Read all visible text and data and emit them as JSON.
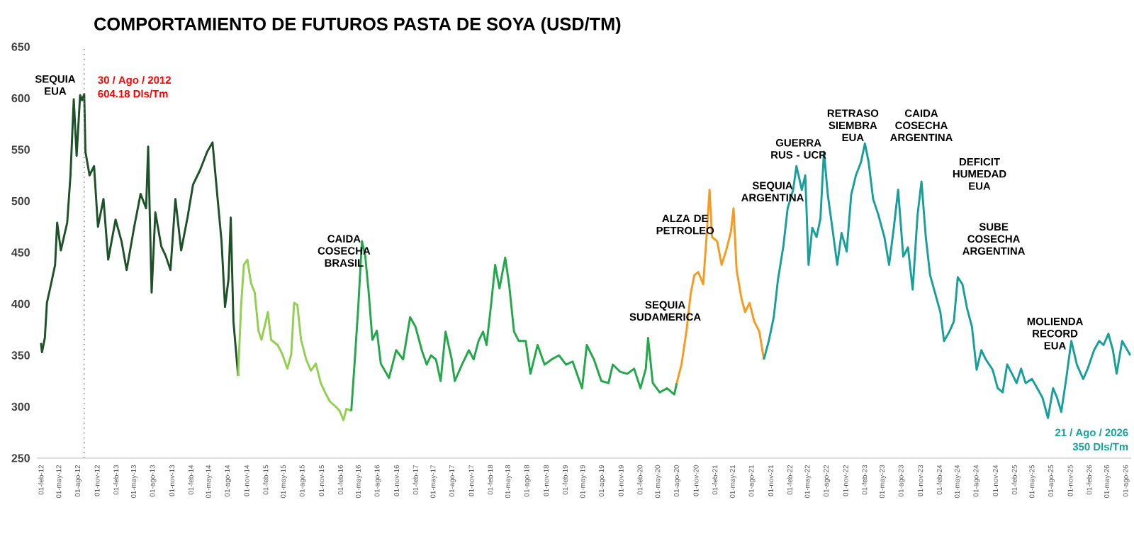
{
  "chart_data": {
    "type": "line",
    "title": "COMPORTAMIENTO DE FUTUROS PASTA DE SOYA (USD/TM)",
    "xlim": [
      "2012-01-12",
      "2026-08-25"
    ],
    "ylim": [
      250,
      650
    ],
    "yticks": [
      250,
      300,
      350,
      400,
      450,
      500,
      550,
      600,
      650
    ],
    "xticks": [
      {
        "value": "2012-02-01",
        "label": "01-feb-12"
      },
      {
        "value": "2012-05-01",
        "label": "01-may-12"
      },
      {
        "value": "2012-08-01",
        "label": "01-ago-12"
      },
      {
        "value": "2012-11-01",
        "label": "01-nov-12"
      },
      {
        "value": "2013-02-01",
        "label": "01-feb-13"
      },
      {
        "value": "2013-05-01",
        "label": "01-may-13"
      },
      {
        "value": "2013-08-01",
        "label": "01-ago-13"
      },
      {
        "value": "2013-11-01",
        "label": "01-nov-13"
      },
      {
        "value": "2014-02-01",
        "label": "01-feb-14"
      },
      {
        "value": "2014-05-01",
        "label": "01-may-14"
      },
      {
        "value": "2014-08-01",
        "label": "01-ago-14"
      },
      {
        "value": "2014-11-01",
        "label": "01-nov-14"
      },
      {
        "value": "2015-02-01",
        "label": "01-feb-15"
      },
      {
        "value": "2015-05-01",
        "label": "01-may-15"
      },
      {
        "value": "2015-08-01",
        "label": "01-ago-15"
      },
      {
        "value": "2015-11-01",
        "label": "01-nov-15"
      },
      {
        "value": "2016-02-01",
        "label": "01-feb-16"
      },
      {
        "value": "2016-05-01",
        "label": "01-may-16"
      },
      {
        "value": "2016-08-01",
        "label": "01-ago-16"
      },
      {
        "value": "2016-11-01",
        "label": "01-nov-16"
      },
      {
        "value": "2017-02-01",
        "label": "01-feb-17"
      },
      {
        "value": "2017-05-01",
        "label": "01-may-17"
      },
      {
        "value": "2017-08-01",
        "label": "01-ago-17"
      },
      {
        "value": "2017-11-01",
        "label": "01-nov-17"
      },
      {
        "value": "2018-02-01",
        "label": "01-feb-18"
      },
      {
        "value": "2018-05-01",
        "label": "01-may-18"
      },
      {
        "value": "2018-08-01",
        "label": "01-ago-18"
      },
      {
        "value": "2018-11-01",
        "label": "01-nov-18"
      },
      {
        "value": "2019-02-01",
        "label": "01-feb-19"
      },
      {
        "value": "2019-05-01",
        "label": "01-may-19"
      },
      {
        "value": "2019-08-01",
        "label": "01-ago-19"
      },
      {
        "value": "2019-11-01",
        "label": "01-nov-19"
      },
      {
        "value": "2020-02-01",
        "label": "01-feb-20"
      },
      {
        "value": "2020-05-01",
        "label": "01-may-20"
      },
      {
        "value": "2020-08-01",
        "label": "01-ago-20"
      },
      {
        "value": "2020-11-01",
        "label": "01-nov-20"
      },
      {
        "value": "2021-02-01",
        "label": "01-feb-21"
      },
      {
        "value": "2021-05-01",
        "label": "01-may-21"
      },
      {
        "value": "2021-08-01",
        "label": "01-ago-21"
      },
      {
        "value": "2021-11-01",
        "label": "01-nov-21"
      },
      {
        "value": "2022-02-01",
        "label": "01-feb-22"
      },
      {
        "value": "2022-05-01",
        "label": "01-may-22"
      },
      {
        "value": "2022-08-01",
        "label": "01-ago-22"
      },
      {
        "value": "2022-11-01",
        "label": "01-nov-22"
      },
      {
        "value": "2023-02-01",
        "label": "01-feb-23"
      },
      {
        "value": "2023-05-01",
        "label": "01-may-23"
      },
      {
        "value": "2023-08-01",
        "label": "01-ago-23"
      },
      {
        "value": "2023-11-01",
        "label": "01-nov-23"
      },
      {
        "value": "2024-02-01",
        "label": "01-feb-24"
      },
      {
        "value": "2024-05-01",
        "label": "01-may-24"
      },
      {
        "value": "2024-08-01",
        "label": "01-ago-24"
      },
      {
        "value": "2024-11-01",
        "label": "01-nov-24"
      },
      {
        "value": "2025-02-01",
        "label": "01-feb-25"
      },
      {
        "value": "2025-05-01",
        "label": "01-may-25"
      },
      {
        "value": "2025-08-01",
        "label": "01-ago-25"
      },
      {
        "value": "2025-11-01",
        "label": "01-nov-25"
      },
      {
        "value": "2026-02-01",
        "label": "01-feb-26"
      },
      {
        "value": "2026-05-01",
        "label": "01-may-26"
      },
      {
        "value": "2026-08-01",
        "label": "01-ago-26"
      }
    ],
    "series": [
      {
        "color": "#1d5128",
        "x": [
          "2012-02-01",
          "2012-02-06",
          "2012-02-20",
          "2012-03-01",
          "2012-03-22",
          "2012-04-10",
          "2012-04-20",
          "2012-05-08",
          "2012-05-24",
          "2012-06-08",
          "2012-06-24",
          "2012-07-10",
          "2012-07-24",
          "2012-08-10",
          "2012-08-20",
          "2012-08-30",
          "2012-09-05",
          "2012-09-25",
          "2012-10-17",
          "2012-11-05",
          "2012-12-02",
          "2012-12-25",
          "2013-01-30",
          "2013-02-28",
          "2013-03-25",
          "2013-05-01",
          "2013-06-01",
          "2013-06-28",
          "2013-07-08",
          "2013-07-25",
          "2013-08-12",
          "2013-09-10",
          "2013-10-01",
          "2013-10-25",
          "2013-11-18",
          "2013-12-16",
          "2014-01-16",
          "2014-02-12",
          "2014-03-18",
          "2014-04-22",
          "2014-05-18",
          "2014-06-12",
          "2014-07-01",
          "2014-07-18",
          "2014-08-04",
          "2014-08-15",
          "2014-08-28",
          "2014-09-20"
        ],
        "values": [
          362,
          353,
          367,
          401,
          420,
          438,
          479,
          452,
          466,
          479,
          525,
          599,
          544,
          603,
          598,
          604.18,
          548,
          525,
          534,
          475,
          502,
          443,
          482,
          461,
          433,
          475,
          507,
          493,
          553,
          411,
          489,
          456,
          447,
          433,
          502,
          452,
          484,
          516,
          530,
          548,
          557,
          502,
          461,
          397,
          424,
          484,
          383,
          330
        ]
      },
      {
        "color": "#92d050",
        "x": [
          "2014-09-20",
          "2014-10-04",
          "2014-10-18",
          "2014-11-04",
          "2014-11-22",
          "2014-12-10",
          "2014-12-28",
          "2015-01-12",
          "2015-02-12",
          "2015-02-28",
          "2015-04-01",
          "2015-04-24",
          "2015-05-18",
          "2015-06-06",
          "2015-06-20",
          "2015-07-06",
          "2015-07-24",
          "2015-08-18",
          "2015-09-10",
          "2015-10-04",
          "2015-10-28",
          "2015-11-18",
          "2015-12-12",
          "2016-01-10",
          "2016-01-28",
          "2016-02-16",
          "2016-03-01",
          "2016-03-25"
        ],
        "values": [
          330,
          397,
          438,
          443,
          420,
          411,
          374,
          365,
          392,
          365,
          360,
          351,
          337,
          351,
          401,
          399,
          365,
          346,
          335,
          342,
          323,
          314,
          305,
          300,
          296,
          287,
          298,
          296
        ]
      },
      {
        "color": "#22a84a",
        "x": [
          "2016-03-25",
          "2016-04-10",
          "2016-04-28",
          "2016-05-16",
          "2016-06-01",
          "2016-06-18",
          "2016-07-06",
          "2016-07-28",
          "2016-08-16",
          "2016-09-25",
          "2016-10-30",
          "2016-12-03",
          "2017-01-06",
          "2017-02-01",
          "2017-03-04",
          "2017-03-28",
          "2017-04-18",
          "2017-05-12",
          "2017-06-04",
          "2017-06-28",
          "2017-07-28",
          "2017-08-12",
          "2017-09-16",
          "2017-10-20",
          "2017-11-12",
          "2017-12-06",
          "2017-12-28",
          "2018-01-14",
          "2018-02-06",
          "2018-02-25",
          "2018-03-18",
          "2018-04-15",
          "2018-05-04",
          "2018-05-28",
          "2018-06-20",
          "2018-07-24",
          "2018-08-16",
          "2018-09-20",
          "2018-10-24",
          "2018-11-28",
          "2019-01-02",
          "2019-02-06",
          "2019-03-10",
          "2019-04-25",
          "2019-05-18",
          "2019-06-22",
          "2019-07-28",
          "2019-09-01",
          "2019-09-22",
          "2019-10-28",
          "2019-12-01",
          "2020-01-04",
          "2020-02-04",
          "2020-03-01",
          "2020-03-12",
          "2020-04-04",
          "2020-05-08",
          "2020-06-12",
          "2020-07-18",
          "2020-07-30"
        ],
        "values": [
          296,
          342,
          397,
          461,
          447,
          411,
          365,
          374,
          342,
          328,
          355,
          346,
          387,
          378,
          355,
          341,
          350,
          346,
          325,
          373,
          346,
          325,
          341,
          355,
          346,
          364,
          373,
          360,
          401,
          438,
          415,
          445,
          419,
          373,
          364,
          364,
          332,
          360,
          341,
          346,
          350,
          341,
          344,
          318,
          360,
          346,
          325,
          323,
          341,
          334,
          332,
          337,
          318,
          337,
          367,
          323,
          314,
          318,
          312,
          323
        ]
      },
      {
        "color": "#f79a1e",
        "x": [
          "2020-07-30",
          "2020-08-22",
          "2020-09-15",
          "2020-10-06",
          "2020-10-24",
          "2020-11-12",
          "2020-12-06",
          "2020-12-24",
          "2021-01-06",
          "2021-01-18",
          "2021-02-12",
          "2021-03-06",
          "2021-03-28",
          "2021-04-20",
          "2021-05-03",
          "2021-05-18",
          "2021-06-10",
          "2021-06-28",
          "2021-07-20",
          "2021-08-12",
          "2021-09-06",
          "2021-09-28"
        ],
        "values": [
          323,
          341,
          373,
          410,
          428,
          431,
          419,
          470,
          511,
          465,
          461,
          438,
          452,
          470,
          493,
          433,
          406,
          392,
          401,
          383,
          373,
          346
        ]
      },
      {
        "color": "#17a09b",
        "x": [
          "2021-09-28",
          "2021-10-22",
          "2021-11-15",
          "2021-12-06",
          "2022-01-01",
          "2022-01-22",
          "2022-02-18",
          "2022-03-06",
          "2022-04-01",
          "2022-04-18",
          "2022-05-04",
          "2022-05-22",
          "2022-06-12",
          "2022-07-01",
          "2022-07-18",
          "2022-08-06",
          "2022-08-28",
          "2022-09-21",
          "2022-10-12",
          "2022-11-06",
          "2022-11-28",
          "2022-12-21",
          "2023-01-15",
          "2023-02-03",
          "2023-02-21",
          "2023-03-15",
          "2023-04-09",
          "2023-05-09",
          "2023-06-01",
          "2023-06-24",
          "2023-07-15",
          "2023-08-09",
          "2023-09-01",
          "2023-09-24",
          "2023-10-18",
          "2023-11-06",
          "2023-11-27",
          "2023-12-18",
          "2024-01-12",
          "2024-02-06",
          "2024-02-24",
          "2024-03-21",
          "2024-04-12",
          "2024-05-01",
          "2024-05-24",
          "2024-06-15",
          "2024-07-09",
          "2024-08-01",
          "2024-08-24",
          "2024-09-15",
          "2024-10-18",
          "2024-11-12",
          "2024-12-06",
          "2024-12-28",
          "2025-01-21",
          "2025-02-12",
          "2025-03-06",
          "2025-03-28",
          "2025-04-28",
          "2025-05-24",
          "2025-06-18",
          "2025-07-15",
          "2025-08-09",
          "2025-08-28",
          "2025-09-18",
          "2025-10-12",
          "2025-11-06",
          "2025-12-03",
          "2026-01-03",
          "2026-01-25",
          "2026-02-25",
          "2026-03-22",
          "2026-04-12",
          "2026-05-06",
          "2026-05-28",
          "2026-06-15",
          "2026-07-12",
          "2026-08-21"
        ],
        "values": [
          346,
          364,
          387,
          424,
          456,
          493,
          511,
          534,
          511,
          525,
          438,
          474,
          465,
          483,
          548,
          506,
          474,
          438,
          469,
          451,
          506,
          525,
          538,
          556,
          538,
          502,
          487,
          465,
          438,
          474,
          511,
          446,
          455,
          414,
          487,
          519,
          465,
          428,
          410,
          392,
          364,
          373,
          383,
          426,
          419,
          396,
          378,
          336,
          355,
          346,
          336,
          318,
          314,
          341,
          332,
          323,
          337,
          323,
          327,
          318,
          309,
          289,
          318,
          309,
          295,
          327,
          364,
          341,
          327,
          337,
          355,
          364,
          360,
          371,
          355,
          332,
          364,
          350
        ]
      }
    ],
    "ref_lines": [
      {
        "axis": "x",
        "value": "2012-08-30",
        "label": "30 / Ago / 2012",
        "color": "#808080",
        "line_style": "dotted"
      }
    ],
    "annotations": [
      "604.18 Dls/Tm",
      "SEQUIA EUA",
      "CAIDA COSECHA BRASIL",
      "SEQUIA SUDAMERICA",
      "ALZA DE PETROLEO",
      "SEQUIA ARGENTINA",
      "GUERRA RUS - UCR",
      "RETRASO SIEMBRA EUA",
      "CAIDA COSECHA ARGENTINA",
      "DEFICIT HUMEDAD EUA",
      "SUBE COSECHA ARGENTINA",
      "MOLIENDA RECORD EUA",
      "21 / Ago / 2026",
      "350 Dls/Tm"
    ]
  }
}
